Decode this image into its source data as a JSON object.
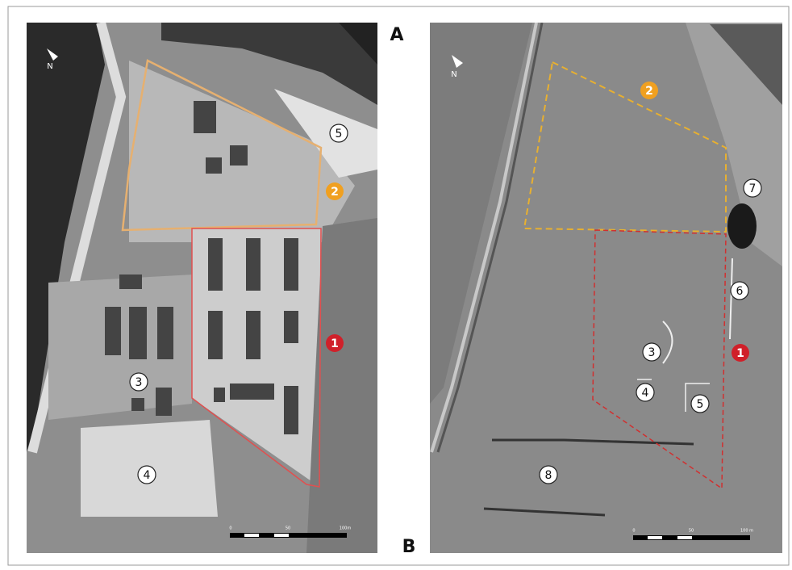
{
  "panels": [
    {
      "label": "A",
      "north": "N",
      "markers": [
        "5",
        "2",
        "1",
        "3",
        "4"
      ],
      "scale_labels": [
        "0",
        "50",
        "100m"
      ]
    },
    {
      "label": "B",
      "north": "N",
      "markers": [
        "2",
        "7",
        "6",
        "3",
        "1",
        "4",
        "5",
        "8"
      ],
      "scale_labels": [
        "0",
        "50",
        "100 m"
      ]
    }
  ]
}
